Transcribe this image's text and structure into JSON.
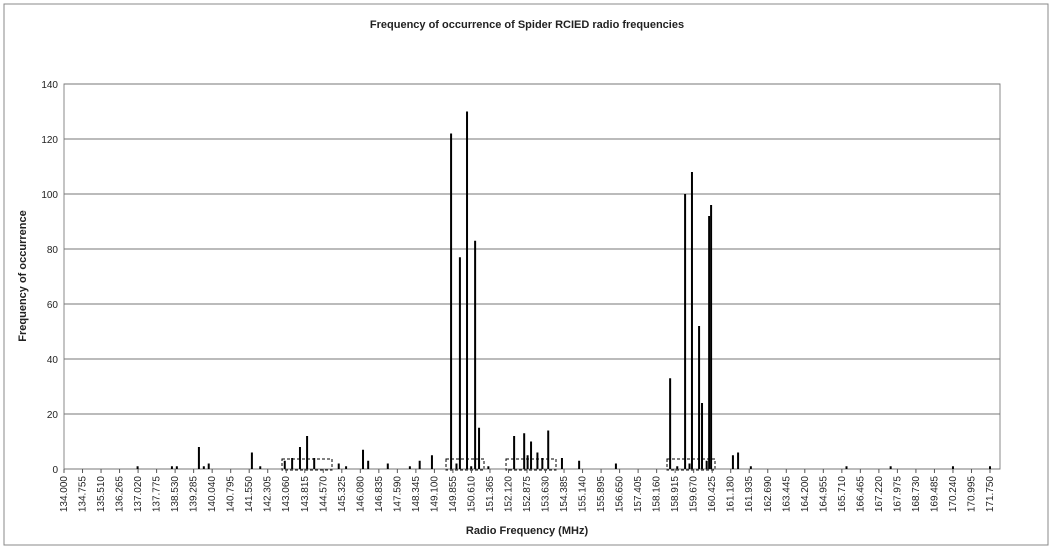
{
  "chart_data": {
    "type": "bar",
    "title": "Frequency of occurrence of Spider RCIED radio frequencies",
    "xlabel": "Radio Frequency (MHz)",
    "ylabel": "Frequency of occurrence",
    "color": "#000000",
    "grid": true,
    "xlim": [
      134,
      171.75
    ],
    "ylim": [
      0,
      140
    ],
    "yticks": [
      0,
      20,
      40,
      60,
      80,
      100,
      120,
      140
    ],
    "xticks": [
      {
        "value": 134,
        "label": "134.000"
      },
      {
        "value": 134.755,
        "label": "134.755"
      },
      {
        "value": 135.51,
        "label": "135.510"
      },
      {
        "value": 136.265,
        "label": "136.265"
      },
      {
        "value": 137.02,
        "label": "137.020"
      },
      {
        "value": 137.775,
        "label": "137.775"
      },
      {
        "value": 138.53,
        "label": "138.530"
      },
      {
        "value": 139.285,
        "label": "139.285"
      },
      {
        "value": 140.04,
        "label": "140.040"
      },
      {
        "value": 140.795,
        "label": "140.795"
      },
      {
        "value": 141.55,
        "label": "141.550"
      },
      {
        "value": 142.305,
        "label": "142.305"
      },
      {
        "value": 143.06,
        "label": "143.060"
      },
      {
        "value": 143.815,
        "label": "143.815"
      },
      {
        "value": 144.57,
        "label": "144.570"
      },
      {
        "value": 145.325,
        "label": "145.325"
      },
      {
        "value": 146.08,
        "label": "146.080"
      },
      {
        "value": 146.835,
        "label": "146.835"
      },
      {
        "value": 147.59,
        "label": "147.590"
      },
      {
        "value": 148.345,
        "label": "148.345"
      },
      {
        "value": 149.1,
        "label": "149.100"
      },
      {
        "value": 149.855,
        "label": "149.855"
      },
      {
        "value": 150.61,
        "label": "150.610"
      },
      {
        "value": 151.365,
        "label": "151.365"
      },
      {
        "value": 152.12,
        "label": "152.120"
      },
      {
        "value": 152.875,
        "label": "152.875"
      },
      {
        "value": 153.63,
        "label": "153.630"
      },
      {
        "value": 154.385,
        "label": "154.385"
      },
      {
        "value": 155.14,
        "label": "155.140"
      },
      {
        "value": 155.895,
        "label": "155.895"
      },
      {
        "value": 156.65,
        "label": "156.650"
      },
      {
        "value": 157.405,
        "label": "157.405"
      },
      {
        "value": 158.16,
        "label": "158.160"
      },
      {
        "value": 158.915,
        "label": "158.915"
      },
      {
        "value": 159.67,
        "label": "159.670"
      },
      {
        "value": 160.425,
        "label": "160.425"
      },
      {
        "value": 161.18,
        "label": "161.180"
      },
      {
        "value": 161.935,
        "label": "161.935"
      },
      {
        "value": 162.69,
        "label": "162.690"
      },
      {
        "value": 163.445,
        "label": "163.445"
      },
      {
        "value": 164.2,
        "label": "164.200"
      },
      {
        "value": 164.955,
        "label": "164.955"
      },
      {
        "value": 165.71,
        "label": "165.710"
      },
      {
        "value": 166.465,
        "label": "166.465"
      },
      {
        "value": 167.22,
        "label": "167.220"
      },
      {
        "value": 167.975,
        "label": "167.975"
      },
      {
        "value": 168.73,
        "label": "168.730"
      },
      {
        "value": 169.485,
        "label": "169.485"
      },
      {
        "value": 170.24,
        "label": "170.240"
      },
      {
        "value": 170.995,
        "label": "170.995"
      },
      {
        "value": 171.75,
        "label": "171.750"
      }
    ],
    "x": [
      137.0,
      138.4,
      138.6,
      139.5,
      139.7,
      139.9,
      141.66,
      142.0,
      143.0,
      143.3,
      143.62,
      143.91,
      144.2,
      145.2,
      145.5,
      146.19,
      146.4,
      147.2,
      148.1,
      148.5,
      149.0,
      149.78,
      150.0,
      150.14,
      150.43,
      150.6,
      150.76,
      150.92,
      151.3,
      152.35,
      152.76,
      152.9,
      153.04,
      153.3,
      153.5,
      153.74,
      154.3,
      155.0,
      156.5,
      158.71,
      159.0,
      159.32,
      159.5,
      159.6,
      159.89,
      160.01,
      160.2,
      160.3,
      160.38,
      161.27,
      161.48,
      162.0,
      165.9,
      167.7,
      170.24,
      171.75
    ],
    "values": [
      1,
      1,
      1,
      8,
      1,
      2,
      6,
      1,
      3,
      4,
      8,
      12,
      4,
      2,
      1,
      7,
      3,
      2,
      1,
      3,
      5,
      122,
      2,
      77,
      130,
      1,
      83,
      15,
      1,
      12,
      13,
      5,
      10,
      6,
      4,
      14,
      4,
      3,
      2,
      33,
      1,
      100,
      2,
      108,
      52,
      24,
      3,
      92,
      96,
      5,
      6,
      1,
      1,
      1,
      1,
      1
    ]
  }
}
